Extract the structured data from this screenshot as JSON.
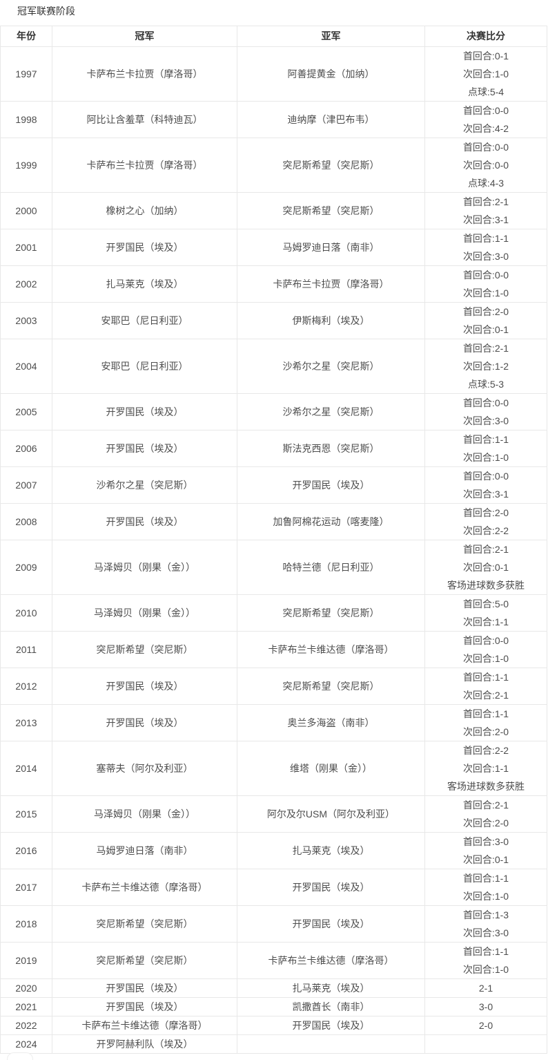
{
  "page": {
    "title": "冠军联赛阶段"
  },
  "colors": {
    "background": "#ffffff",
    "border": "#e8e8e8",
    "text": "#4d4d4d",
    "header_text": "#333333"
  },
  "table": {
    "columns": [
      "年份",
      "冠军",
      "亚军",
      "决赛比分"
    ],
    "rows": [
      {
        "year": "1997",
        "champion": "卡萨布兰卡拉贾（摩洛哥）",
        "runner_up": "阿善提黄金（加纳）",
        "score_lines": [
          "首回合:0-1",
          "次回合:1-0",
          "点球:5-4"
        ]
      },
      {
        "year": "1998",
        "champion": "阿比让含羞草（科特迪瓦）",
        "runner_up": "迪纳摩（津巴布韦）",
        "score_lines": [
          "首回合:0-0",
          "次回合:4-2"
        ]
      },
      {
        "year": "1999",
        "champion": "卡萨布兰卡拉贾（摩洛哥）",
        "runner_up": "突尼斯希望（突尼斯）",
        "score_lines": [
          "首回合:0-0",
          "次回合:0-0",
          "点球:4-3"
        ]
      },
      {
        "year": "2000",
        "champion": "橡树之心（加纳）",
        "runner_up": "突尼斯希望（突尼斯）",
        "score_lines": [
          "首回合:2-1",
          "次回合:3-1"
        ]
      },
      {
        "year": "2001",
        "champion": "开罗国民（埃及）",
        "runner_up": "马姆罗迪日落（南非）",
        "score_lines": [
          "首回合:1-1",
          "次回合:3-0"
        ]
      },
      {
        "year": "2002",
        "champion": "扎马莱克（埃及）",
        "runner_up": "卡萨布兰卡拉贾（摩洛哥）",
        "score_lines": [
          "首回合:0-0",
          "次回合:1-0"
        ]
      },
      {
        "year": "2003",
        "champion": "安耶巴（尼日利亚）",
        "runner_up": "伊斯梅利（埃及）",
        "score_lines": [
          "首回合:2-0",
          "次回合:0-1"
        ]
      },
      {
        "year": "2004",
        "champion": "安耶巴（尼日利亚）",
        "runner_up": "沙希尔之星（突尼斯）",
        "score_lines": [
          "首回合:2-1",
          "次回合:1-2",
          "点球:5-3"
        ]
      },
      {
        "year": "2005",
        "champion": "开罗国民（埃及）",
        "runner_up": "沙希尔之星（突尼斯）",
        "score_lines": [
          "首回合:0-0",
          "次回合:3-0"
        ]
      },
      {
        "year": "2006",
        "champion": "开罗国民（埃及）",
        "runner_up": "斯法克西恩（突尼斯）",
        "score_lines": [
          "首回合:1-1",
          "次回合:1-0"
        ]
      },
      {
        "year": "2007",
        "champion": "沙希尔之星（突尼斯）",
        "runner_up": "开罗国民（埃及）",
        "score_lines": [
          "首回合:0-0",
          "次回合:3-1"
        ]
      },
      {
        "year": "2008",
        "champion": "开罗国民（埃及）",
        "runner_up": "加鲁阿棉花运动（喀麦隆）",
        "score_lines": [
          "首回合:2-0",
          "次回合:2-2"
        ]
      },
      {
        "year": "2009",
        "champion": "马泽姆贝（刚果（金））",
        "runner_up": "哈特兰德（尼日利亚）",
        "score_lines": [
          "首回合:2-1",
          "次回合:0-1",
          "客场进球数多获胜"
        ]
      },
      {
        "year": "2010",
        "champion": "马泽姆贝（刚果（金））",
        "runner_up": "突尼斯希望（突尼斯）",
        "score_lines": [
          "首回合:5-0",
          "次回合:1-1"
        ]
      },
      {
        "year": "2011",
        "champion": "突尼斯希望（突尼斯）",
        "runner_up": "卡萨布兰卡维达德（摩洛哥）",
        "score_lines": [
          "首回合:0-0",
          "次回合:1-0"
        ]
      },
      {
        "year": "2012",
        "champion": "开罗国民（埃及）",
        "runner_up": "突尼斯希望（突尼斯）",
        "score_lines": [
          "首回合:1-1",
          "次回合:2-1"
        ]
      },
      {
        "year": "2013",
        "champion": "开罗国民（埃及）",
        "runner_up": "奥兰多海盗（南非）",
        "score_lines": [
          "首回合:1-1",
          "次回合:2-0"
        ]
      },
      {
        "year": "2014",
        "champion": "塞蒂夫（阿尔及利亚）",
        "runner_up": "维塔（刚果（金））",
        "score_lines": [
          "首回合:2-2",
          "次回合:1-1",
          "客场进球数多获胜"
        ]
      },
      {
        "year": "2015",
        "champion": "马泽姆贝（刚果（金））",
        "runner_up": "阿尔及尔USM（阿尔及利亚）",
        "score_lines": [
          "首回合:2-1",
          "次回合:2-0"
        ]
      },
      {
        "year": "2016",
        "champion": "马姆罗迪日落（南非）",
        "runner_up": "扎马莱克（埃及）",
        "score_lines": [
          "首回合:3-0",
          "次回合:0-1"
        ]
      },
      {
        "year": "2017",
        "champion": "卡萨布兰卡维达德（摩洛哥）",
        "runner_up": "开罗国民（埃及）",
        "score_lines": [
          "首回合:1-1",
          "次回合:1-0"
        ]
      },
      {
        "year": "2018",
        "champion": "突尼斯希望（突尼斯）",
        "runner_up": "开罗国民（埃及）",
        "score_lines": [
          "首回合:1-3",
          "次回合:3-0"
        ]
      },
      {
        "year": "2019",
        "champion": "突尼斯希望（突尼斯）",
        "runner_up": "卡萨布兰卡维达德（摩洛哥）",
        "score_lines": [
          "首回合:1-1",
          "次回合:1-0"
        ]
      },
      {
        "year": "2020",
        "champion": "开罗国民（埃及）",
        "runner_up": "扎马莱克（埃及）",
        "score_lines": [
          "2-1"
        ]
      },
      {
        "year": "2021",
        "champion": "开罗国民（埃及）",
        "runner_up": "凯撒酋长（南非）",
        "score_lines": [
          "3-0"
        ]
      },
      {
        "year": "2022",
        "champion": "卡萨布兰卡维达德（摩洛哥）",
        "runner_up": "开罗国民（埃及）",
        "score_lines": [
          "2-0"
        ]
      },
      {
        "year": "2024",
        "champion": "开罗阿赫利队（埃及）",
        "runner_up": "",
        "score_lines": []
      }
    ]
  }
}
